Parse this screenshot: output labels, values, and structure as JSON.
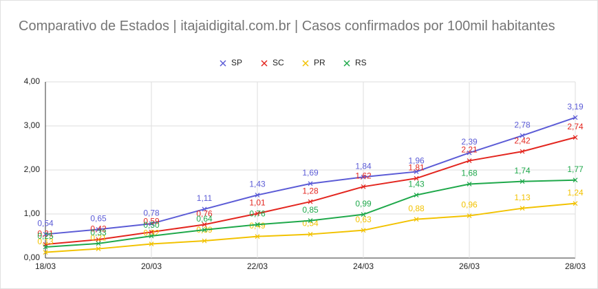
{
  "chart_data": {
    "type": "line",
    "title": "Comparativo de Estados | itajaidigital.com.br | Casos confirmados por 100mil habitantes",
    "categories": [
      "18/03",
      null,
      "20/03",
      null,
      "22/03",
      null,
      "24/03",
      null,
      "26/03",
      null,
      "28/03"
    ],
    "series": [
      {
        "name": "SP",
        "color": "#5b5bd6",
        "values": [
          0.54,
          0.65,
          0.78,
          1.11,
          1.43,
          1.69,
          1.84,
          1.96,
          2.39,
          2.78,
          3.19
        ],
        "value_labels": [
          "0,54",
          "0,65",
          "0,78",
          "1,11",
          "1,43",
          "1,69",
          "1,84",
          "1,96",
          "2,39",
          "2,78",
          "3,19"
        ]
      },
      {
        "name": "SC",
        "color": "#e3261f",
        "values": [
          0.31,
          0.42,
          0.59,
          0.76,
          1.01,
          1.28,
          1.62,
          1.81,
          2.21,
          2.42,
          2.74
        ],
        "value_labels": [
          "0,31",
          "0,42",
          "0,59",
          "0,76",
          "1,01",
          "1,28",
          "1,62",
          "1,81",
          "2,21",
          "2,42",
          "2,74"
        ]
      },
      {
        "name": "PR",
        "color": "#f2c200",
        "values": [
          0.13,
          0.21,
          0.32,
          0.39,
          0.49,
          0.54,
          0.63,
          0.88,
          0.96,
          1.13,
          1.24
        ],
        "value_labels": [
          "0,13",
          "0,21",
          "0,32",
          "0,39",
          "0,49",
          "0,54",
          "0,63",
          "0,88",
          "0,96",
          "1,13",
          "1,24"
        ]
      },
      {
        "name": "RS",
        "color": "#1ea84a",
        "values": [
          0.25,
          0.33,
          0.5,
          0.64,
          0.76,
          0.85,
          0.99,
          1.43,
          1.68,
          1.74,
          1.77
        ],
        "value_labels": [
          "0,25",
          "0,33",
          "0,50",
          "0,64",
          "0,76",
          "0,85",
          "0,99",
          "1,43",
          "1,68",
          "1,74",
          "1,77"
        ]
      }
    ],
    "ylim": [
      0,
      4
    ],
    "yticks": [
      {
        "value": 0,
        "label": "0,00"
      },
      {
        "value": 1,
        "label": "1,00"
      },
      {
        "value": 2,
        "label": "2,00"
      },
      {
        "value": 3,
        "label": "3,00"
      },
      {
        "value": 4,
        "label": "4,00"
      }
    ],
    "grid": true,
    "legend": "top"
  }
}
